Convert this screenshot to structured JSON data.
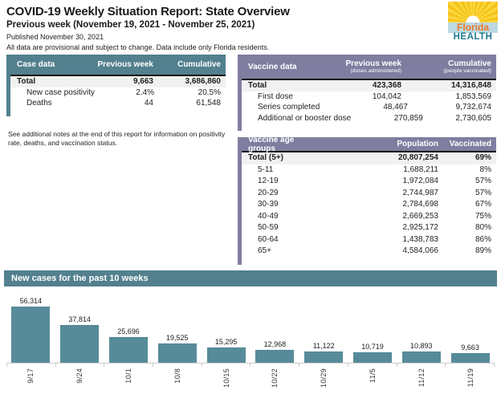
{
  "header": {
    "title": "COVID-19 Weekly Situation Report: State Overview",
    "subtitle": "Previous week (November 19, 2021 - November 25, 2021)",
    "published": "Published November 30, 2021",
    "disclaimer": "All data are provisional and subject to change. Data include only Florida residents.",
    "logo": {
      "line1": "Florida",
      "line2": "HEALTH"
    }
  },
  "colors": {
    "teal_accent": "#53808e",
    "purple_accent": "#7f7ea0",
    "bar_color": "#578b99",
    "total_row_bg": "#f1f1f1",
    "logo_orange": "#e87722",
    "logo_teal": "#1d7a8c",
    "logo_yellow": "#f7c219"
  },
  "case_table": {
    "title": "Case data",
    "col1": "Previous week",
    "col2": "Cumulative",
    "rows": [
      {
        "label": "Total",
        "prev": "9,663",
        "cum": "3,686,860",
        "total": true
      },
      {
        "label": "New case positivity",
        "prev": "2.4%",
        "cum": "20.5%"
      },
      {
        "label": "Deaths",
        "prev": "44",
        "cum": "61,548"
      }
    ]
  },
  "note": "See additional notes at the end of this report for information on positivity rate, deaths, and vaccination status.",
  "vaccine_table": {
    "title": "Vaccine data",
    "col1": "Previous week",
    "col1_sub": "(doses administered)",
    "col2": "Cumulative",
    "col2_sub": "(people vaccinated)",
    "rows": [
      {
        "label": "Total",
        "prev": "423,368",
        "cum": "14,316,848",
        "total": true
      },
      {
        "label": "First dose",
        "prev": "104,042",
        "cum": "1,853,569"
      },
      {
        "label": "Series completed",
        "prev": "48,467",
        "cum": "9,732,674"
      },
      {
        "label": "Additional or booster dose",
        "prev": "270,859",
        "cum": "2,730,605"
      }
    ]
  },
  "age_table": {
    "title": "Vaccine age groups",
    "col1": "Population",
    "col2": "Vaccinated",
    "rows": [
      {
        "label": "Total (5+)",
        "prev": "20,807,254",
        "cum": "69%",
        "total": true
      },
      {
        "label": "5-11",
        "prev": "1,688,211",
        "cum": "8%"
      },
      {
        "label": "12-19",
        "prev": "1,972,084",
        "cum": "57%"
      },
      {
        "label": "20-29",
        "prev": "2,744,987",
        "cum": "57%"
      },
      {
        "label": "30-39",
        "prev": "2,784,698",
        "cum": "67%"
      },
      {
        "label": "40-49",
        "prev": "2,669,253",
        "cum": "75%"
      },
      {
        "label": "50-59",
        "prev": "2,925,172",
        "cum": "80%"
      },
      {
        "label": "60-64",
        "prev": "1,438,783",
        "cum": "86%"
      },
      {
        "label": "65+",
        "prev": "4,584,066",
        "cum": "89%"
      }
    ]
  },
  "chart_section": {
    "title": "New cases for the past 10 weeks"
  },
  "chart_data": {
    "type": "bar",
    "title": "New cases for the past 10 weeks",
    "categories": [
      "9/17",
      "9/24",
      "10/1",
      "10/8",
      "10/15",
      "10/22",
      "10/29",
      "11/5",
      "11/12",
      "11/19"
    ],
    "values": [
      56314,
      37814,
      25696,
      19525,
      15295,
      12968,
      11122,
      10719,
      10893,
      9663
    ],
    "value_labels": [
      "56,314",
      "37,814",
      "25,696",
      "19,525",
      "15,295",
      "12,968",
      "11,122",
      "10,719",
      "10,893",
      "9,663"
    ],
    "bar_color": "#578b99",
    "xlabel": "",
    "ylabel": "",
    "ylim": [
      0,
      56314
    ],
    "grid": false,
    "legend": false,
    "data_labels": true,
    "x_label_rotation": -90
  }
}
